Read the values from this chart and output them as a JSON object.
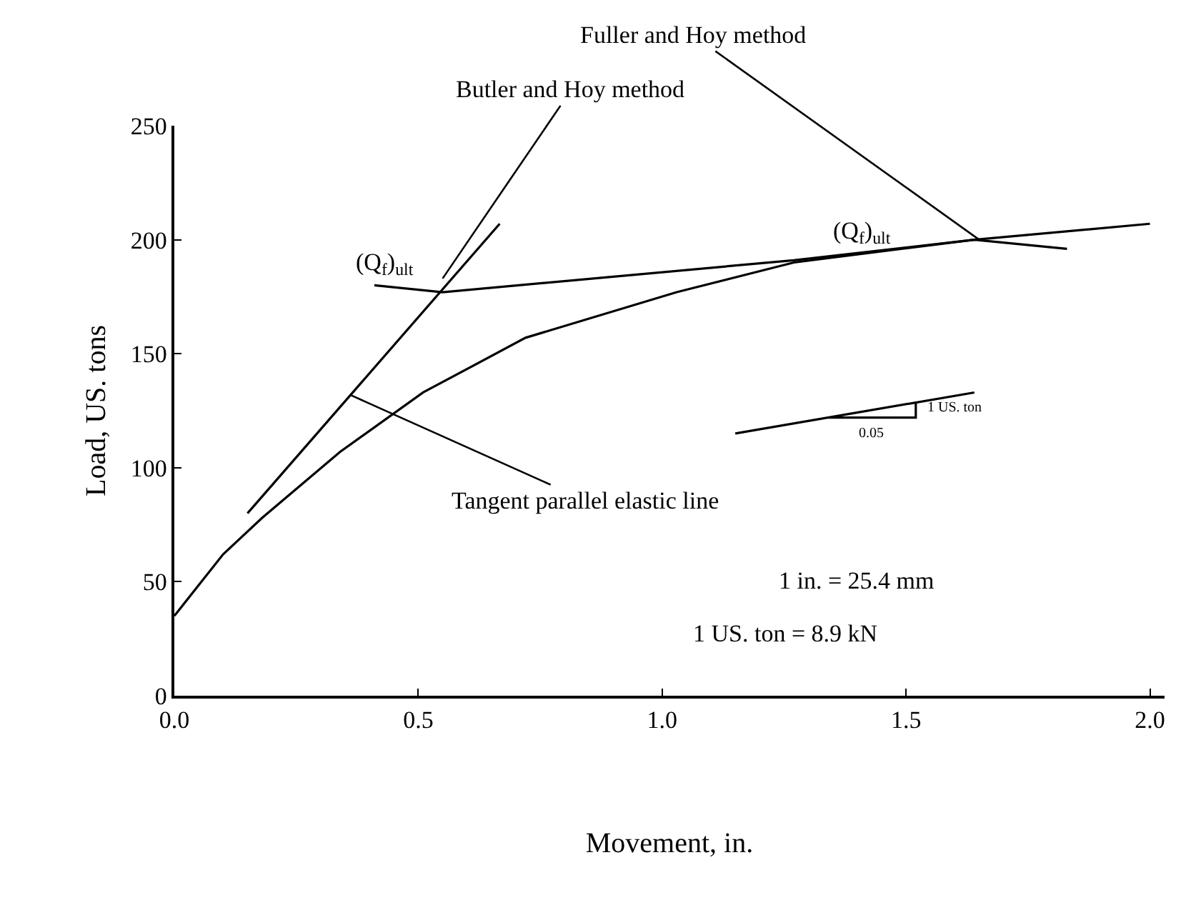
{
  "chart_data": {
    "type": "line",
    "xlabel": "Movement, in.",
    "ylabel": "Load, US. tons",
    "xlim": [
      0,
      2.03
    ],
    "xticks": [
      {
        "value": 0,
        "label": "0.0"
      },
      0.5,
      {
        "value": 1,
        "label": "1.0"
      },
      1.5,
      {
        "value": 2,
        "label": "2.0"
      }
    ],
    "ylim": [
      0,
      250
    ],
    "yticks": [
      0,
      50,
      100,
      150,
      200,
      250
    ],
    "marker": "none",
    "line_style": "solid",
    "series": [
      {
        "color": "#000000",
        "x": [
          0,
          0.1,
          0.18,
          0.34,
          0.51,
          0.72,
          1.03,
          1.27,
          1.49,
          1.64,
          2.0
        ],
        "values": [
          35,
          62,
          78,
          107,
          133,
          157,
          177,
          190,
          196,
          200,
          207
        ]
      },
      {
        "color": "#000000",
        "x": [
          0.15,
          0.667
        ],
        "values": [
          80,
          207
        ]
      },
      {
        "color": "#000000",
        "x": [
          0.41,
          0.55,
          1.27,
          1.64,
          1.83
        ],
        "values": [
          180,
          177,
          191,
          200,
          196
        ]
      },
      {
        "color": "#000000",
        "x": [
          1.15,
          1.64
        ],
        "values": [
          115,
          133
        ]
      },
      {
        "color": "#000000",
        "x": [
          1.34,
          1.52,
          1.52
        ],
        "values": [
          122,
          122,
          129
        ]
      }
    ],
    "annotations": [
      {
        "text": "Fuller and Hoy method",
        "x": 1.65,
        "y": 200
      },
      {
        "text": "Butler and Hoy method",
        "x": 0.55,
        "y": 183
      },
      "(Q$_{f}$)$_{ult}$",
      "(Q$_{f}$)$_{ult}$",
      {
        "text": "Tangent parallel elastic line",
        "x": 0.36,
        "y": 132
      },
      "1 in. = 25.4 mm",
      "1 US. ton = 8.9 kN",
      {
        "text": "1 US. ton",
        "x": 1.53,
        "y": 126
      },
      {
        "text": "0.05",
        "x": 1.43,
        "y": 122
      }
    ]
  }
}
